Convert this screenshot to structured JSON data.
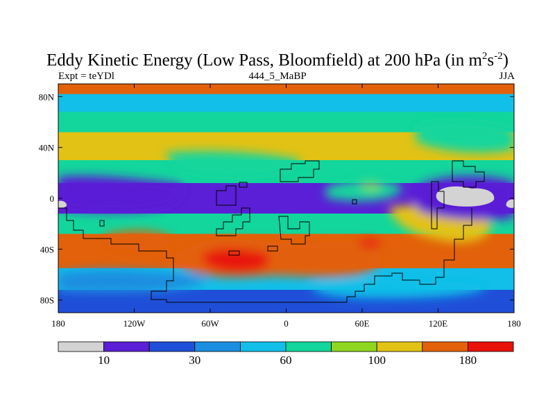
{
  "chart_data": {
    "type": "heatmap",
    "title_main": "Eddy Kinetic Energy (Low Pass, Bloomfield) at 200 hPa (in m",
    "title_sup1": "2",
    "title_mid": "s",
    "title_sup2": "-2",
    "title_end": ")",
    "subtitle_left": "Expt = teYDl",
    "subtitle_center": "444_5_MaBP",
    "subtitle_right": "JJA",
    "x_ticks": [
      "180",
      "120W",
      "60W",
      "0",
      "60E",
      "120E",
      "180"
    ],
    "y_ticks": [
      "80N",
      "40N",
      "0",
      "40S",
      "80S"
    ],
    "x_range": [
      -180,
      180
    ],
    "y_range": [
      -90,
      90
    ],
    "colorbar_levels": [
      10,
      20,
      30,
      40,
      60,
      80,
      100,
      140,
      180
    ],
    "colorbar_labels": [
      {
        "value": 10,
        "text": "10"
      },
      {
        "value": 30,
        "text": "30"
      },
      {
        "value": 60,
        "text": "60"
      },
      {
        "value": 100,
        "text": "100"
      },
      {
        "value": 180,
        "text": "180"
      }
    ],
    "colorbar_colors": [
      "#d3d3d3",
      "#5a1fd6",
      "#1f4fd8",
      "#1a8ee0",
      "#11bfe8",
      "#12d69c",
      "#8ed61f",
      "#e2c214",
      "#e2610a",
      "#e81208"
    ],
    "field_bands": [
      {
        "lat_range": [
          82,
          90
        ],
        "level": 8
      },
      {
        "lat_range": [
          68,
          82
        ],
        "level": 4
      },
      {
        "lat_range": [
          52,
          68
        ],
        "level": 5
      },
      {
        "lat_range": [
          30,
          52
        ],
        "level": 7
      },
      {
        "lat_range": [
          12,
          30
        ],
        "level": 5
      },
      {
        "lat_range": [
          -12,
          12
        ],
        "level": 1
      },
      {
        "lat_range": [
          -28,
          -12
        ],
        "level": 5
      },
      {
        "lat_range": [
          -55,
          -28
        ],
        "level": 8
      },
      {
        "lat_range": [
          -72,
          -55
        ],
        "level": 4
      },
      {
        "lat_range": [
          -90,
          -72
        ],
        "level": 2
      }
    ]
  }
}
